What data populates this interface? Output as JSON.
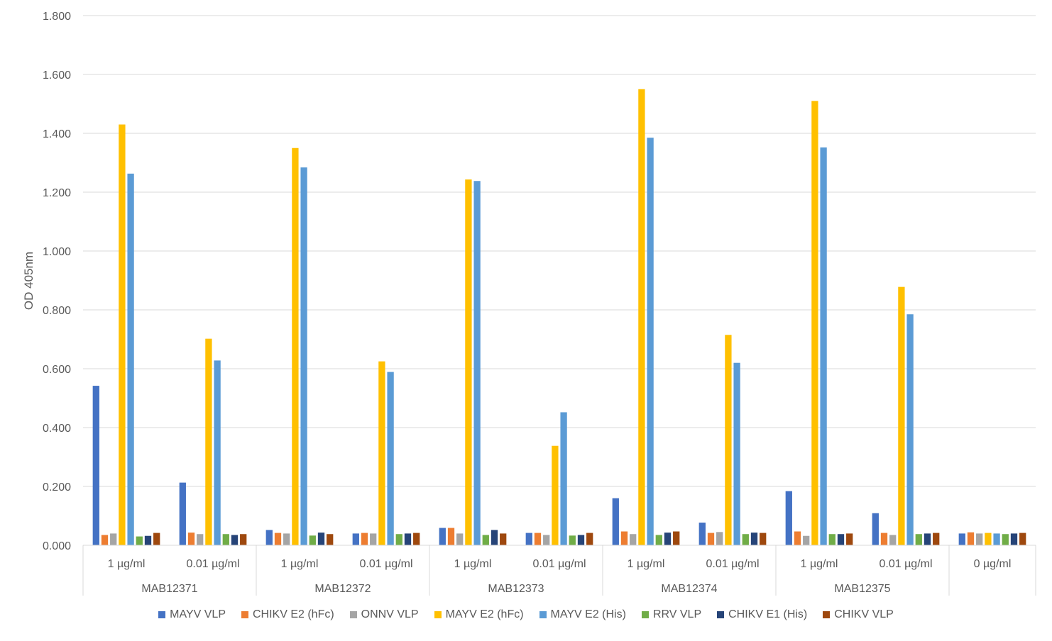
{
  "chart_data": {
    "type": "bar",
    "ylabel": "OD 405nm",
    "ylim": [
      0,
      1.8
    ],
    "yticks": [
      "0.000",
      "0.200",
      "0.400",
      "0.600",
      "0.800",
      "1.000",
      "1.200",
      "1.400",
      "1.600",
      "1.800"
    ],
    "grid": true,
    "legend_position": "bottom",
    "groups": [
      {
        "label": "MAB12371",
        "categories": [
          "1 µg/ml",
          "0.01 µg/ml"
        ]
      },
      {
        "label": "MAB12372",
        "categories": [
          "1 µg/ml",
          "0.01 µg/ml"
        ]
      },
      {
        "label": "MAB12373",
        "categories": [
          "1 µg/ml",
          "0.01 µg/ml"
        ]
      },
      {
        "label": "MAB12374",
        "categories": [
          "1 µg/ml",
          "0.01 µg/ml"
        ]
      },
      {
        "label": "MAB12375",
        "categories": [
          "1 µg/ml",
          "0.01 µg/ml"
        ]
      },
      {
        "label": "",
        "categories": [
          "0 µg/ml"
        ]
      }
    ],
    "series": [
      {
        "name": "MAYV VLP",
        "color": "#4472C4",
        "values": [
          0.542,
          0.213,
          0.052,
          0.04,
          0.059,
          0.042,
          0.16,
          0.077,
          0.184,
          0.109,
          0.04
        ]
      },
      {
        "name": "CHIKV E2 (hFc)",
        "color": "#ED7D31",
        "values": [
          0.035,
          0.043,
          0.042,
          0.042,
          0.059,
          0.042,
          0.047,
          0.042,
          0.047,
          0.042,
          0.044
        ]
      },
      {
        "name": "ONNV VLP",
        "color": "#A5A5A5",
        "values": [
          0.04,
          0.038,
          0.04,
          0.04,
          0.04,
          0.035,
          0.038,
          0.045,
          0.032,
          0.035,
          0.04
        ]
      },
      {
        "name": "MAYV E2 (hFc)",
        "color": "#FFC000",
        "values": [
          1.43,
          0.702,
          1.35,
          0.625,
          1.243,
          0.338,
          1.55,
          0.715,
          1.51,
          0.878,
          0.042
        ]
      },
      {
        "name": "MAYV E2 (His)",
        "color": "#5B9BD5",
        "values": [
          1.263,
          0.628,
          1.284,
          0.589,
          1.238,
          0.452,
          1.385,
          0.62,
          1.352,
          0.785,
          0.04
        ]
      },
      {
        "name": "RRV VLP",
        "color": "#70AD47",
        "values": [
          0.03,
          0.038,
          0.033,
          0.038,
          0.035,
          0.033,
          0.035,
          0.038,
          0.038,
          0.038,
          0.038
        ]
      },
      {
        "name": "CHIKV E1 (His)",
        "color": "#264478",
        "values": [
          0.032,
          0.035,
          0.043,
          0.04,
          0.052,
          0.035,
          0.043,
          0.043,
          0.038,
          0.04,
          0.04
        ]
      },
      {
        "name": "CHIKV VLP",
        "color": "#9E480E",
        "values": [
          0.042,
          0.038,
          0.038,
          0.042,
          0.04,
          0.042,
          0.047,
          0.042,
          0.04,
          0.042,
          0.042
        ]
      }
    ]
  }
}
